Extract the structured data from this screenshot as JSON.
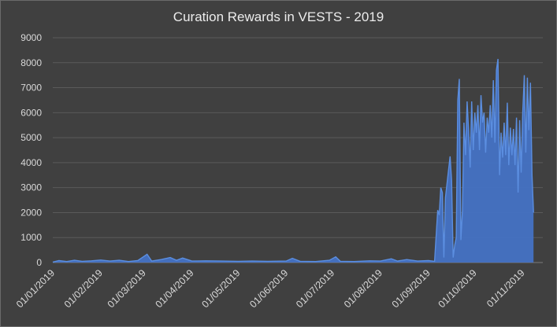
{
  "chart_data": {
    "type": "area",
    "title": "Curation Rewards in VESTS - 2019",
    "xlabel": "",
    "ylabel": "",
    "ylim": [
      0,
      9000
    ],
    "yticks": [
      0,
      1000,
      2000,
      3000,
      4000,
      5000,
      6000,
      7000,
      8000,
      9000
    ],
    "xlim": [
      "2019-01-01",
      "2019-11-14"
    ],
    "xtick_labels": [
      "01/01/2019",
      "01/02/2019",
      "01/03/2019",
      "01/04/2019",
      "01/05/2019",
      "01/06/2019",
      "01/07/2019",
      "01/08/2019",
      "01/09/2019",
      "01/10/2019",
      "01/11/2019"
    ],
    "xtick_dates": [
      "2019-01-01",
      "2019-02-01",
      "2019-03-01",
      "2019-04-01",
      "2019-05-01",
      "2019-06-01",
      "2019-07-01",
      "2019-08-01",
      "2019-09-01",
      "2019-10-01",
      "2019-11-01"
    ],
    "grid": "horizontal",
    "legend": "none",
    "color": "#4472c4",
    "series": [
      {
        "points": [
          [
            "2019-01-01",
            20
          ],
          [
            "2019-01-05",
            80
          ],
          [
            "2019-01-10",
            40
          ],
          [
            "2019-01-15",
            90
          ],
          [
            "2019-01-20",
            50
          ],
          [
            "2019-01-26",
            70
          ],
          [
            "2019-02-01",
            100
          ],
          [
            "2019-02-07",
            60
          ],
          [
            "2019-02-13",
            90
          ],
          [
            "2019-02-19",
            40
          ],
          [
            "2019-02-25",
            80
          ],
          [
            "2019-03-03",
            330
          ],
          [
            "2019-03-06",
            60
          ],
          [
            "2019-03-12",
            120
          ],
          [
            "2019-03-18",
            200
          ],
          [
            "2019-03-22",
            90
          ],
          [
            "2019-03-26",
            180
          ],
          [
            "2019-04-01",
            60
          ],
          [
            "2019-04-10",
            70
          ],
          [
            "2019-04-20",
            60
          ],
          [
            "2019-05-01",
            50
          ],
          [
            "2019-05-10",
            60
          ],
          [
            "2019-05-20",
            50
          ],
          [
            "2019-06-01",
            60
          ],
          [
            "2019-06-05",
            170
          ],
          [
            "2019-06-10",
            50
          ],
          [
            "2019-06-20",
            40
          ],
          [
            "2019-06-29",
            90
          ],
          [
            "2019-07-03",
            230
          ],
          [
            "2019-07-06",
            50
          ],
          [
            "2019-07-15",
            40
          ],
          [
            "2019-07-25",
            70
          ],
          [
            "2019-08-01",
            60
          ],
          [
            "2019-08-08",
            150
          ],
          [
            "2019-08-12",
            60
          ],
          [
            "2019-08-18",
            120
          ],
          [
            "2019-08-25",
            60
          ],
          [
            "2019-09-01",
            80
          ],
          [
            "2019-09-05",
            50
          ],
          [
            "2019-09-07",
            2100
          ],
          [
            "2019-09-08",
            1900
          ],
          [
            "2019-09-09",
            3000
          ],
          [
            "2019-09-10",
            2800
          ],
          [
            "2019-09-11",
            200
          ],
          [
            "2019-09-12",
            2600
          ],
          [
            "2019-09-14",
            3700
          ],
          [
            "2019-09-15",
            4250
          ],
          [
            "2019-09-16",
            3300
          ],
          [
            "2019-09-17",
            200
          ],
          [
            "2019-09-18",
            700
          ],
          [
            "2019-09-19",
            1000
          ],
          [
            "2019-09-20",
            6500
          ],
          [
            "2019-09-21",
            7350
          ],
          [
            "2019-09-22",
            900
          ],
          [
            "2019-09-23",
            2100
          ],
          [
            "2019-09-24",
            5600
          ],
          [
            "2019-09-25",
            4300
          ],
          [
            "2019-09-26",
            6450
          ],
          [
            "2019-09-27",
            5300
          ],
          [
            "2019-09-28",
            3800
          ],
          [
            "2019-09-29",
            6450
          ],
          [
            "2019-09-30",
            4500
          ],
          [
            "2019-10-01",
            6000
          ],
          [
            "2019-10-02",
            5200
          ],
          [
            "2019-10-03",
            6300
          ],
          [
            "2019-10-04",
            4500
          ],
          [
            "2019-10-05",
            6700
          ],
          [
            "2019-10-06",
            5600
          ],
          [
            "2019-10-07",
            6000
          ],
          [
            "2019-10-08",
            4400
          ],
          [
            "2019-10-09",
            5800
          ],
          [
            "2019-10-10",
            5200
          ],
          [
            "2019-10-11",
            6300
          ],
          [
            "2019-10-12",
            5000
          ],
          [
            "2019-10-13",
            7300
          ],
          [
            "2019-10-14",
            4800
          ],
          [
            "2019-10-15",
            7700
          ],
          [
            "2019-10-16",
            8150
          ],
          [
            "2019-10-17",
            3500
          ],
          [
            "2019-10-18",
            5200
          ],
          [
            "2019-10-19",
            4200
          ],
          [
            "2019-10-20",
            5600
          ],
          [
            "2019-10-21",
            4300
          ],
          [
            "2019-10-22",
            6400
          ],
          [
            "2019-10-23",
            3900
          ],
          [
            "2019-10-24",
            5400
          ],
          [
            "2019-10-25",
            4300
          ],
          [
            "2019-10-26",
            5350
          ],
          [
            "2019-10-27",
            3900
          ],
          [
            "2019-10-28",
            5800
          ],
          [
            "2019-10-29",
            2800
          ],
          [
            "2019-10-30",
            5700
          ],
          [
            "2019-10-31",
            3600
          ],
          [
            "2019-11-01",
            6000
          ],
          [
            "2019-11-02",
            7500
          ],
          [
            "2019-11-03",
            4400
          ],
          [
            "2019-11-04",
            7400
          ],
          [
            "2019-11-05",
            5300
          ],
          [
            "2019-11-06",
            7200
          ],
          [
            "2019-11-07",
            3500
          ],
          [
            "2019-11-08",
            2000
          ]
        ]
      }
    ]
  }
}
